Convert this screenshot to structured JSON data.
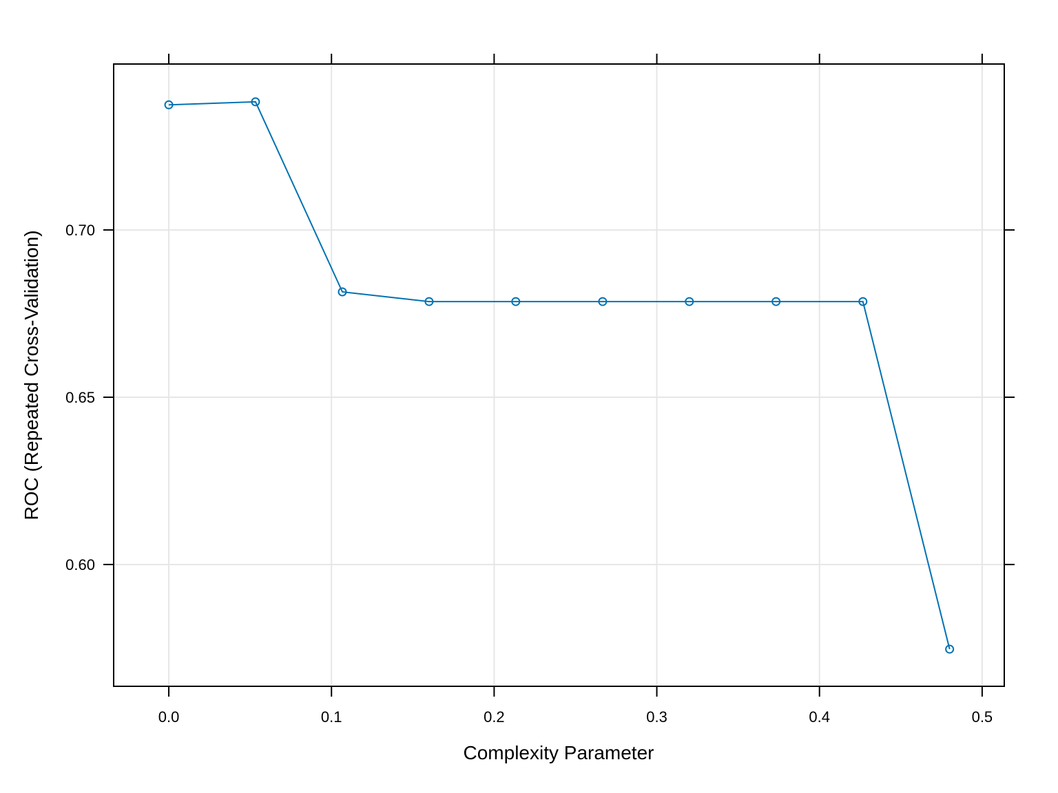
{
  "chart_data": {
    "type": "line",
    "xlabel": "Complexity Parameter",
    "ylabel": "ROC (Repeated Cross-Validation)",
    "x": [
      0,
      0.0533,
      0.1067,
      0.16,
      0.2133,
      0.2667,
      0.32,
      0.3733,
      0.4267,
      0.48
    ],
    "series": [
      {
        "color": "#0072b2",
        "values": [
          0.7374,
          0.7383,
          0.6815,
          0.6786,
          0.6786,
          0.6786,
          0.6786,
          0.6786,
          0.6786,
          0.5747
        ]
      }
    ],
    "xlim": [
      -0.0339,
      0.5136
    ],
    "ylim": [
      0.5636,
      0.7496
    ],
    "xticks": [
      {
        "value": 0,
        "label": "0.0"
      },
      0.1,
      0.2,
      0.3,
      0.4,
      0.5
    ],
    "yticks": [
      {
        "value": 0.6,
        "label": "0.60"
      },
      0.65,
      {
        "value": 0.7,
        "label": "0.70"
      }
    ],
    "grid": true
  }
}
